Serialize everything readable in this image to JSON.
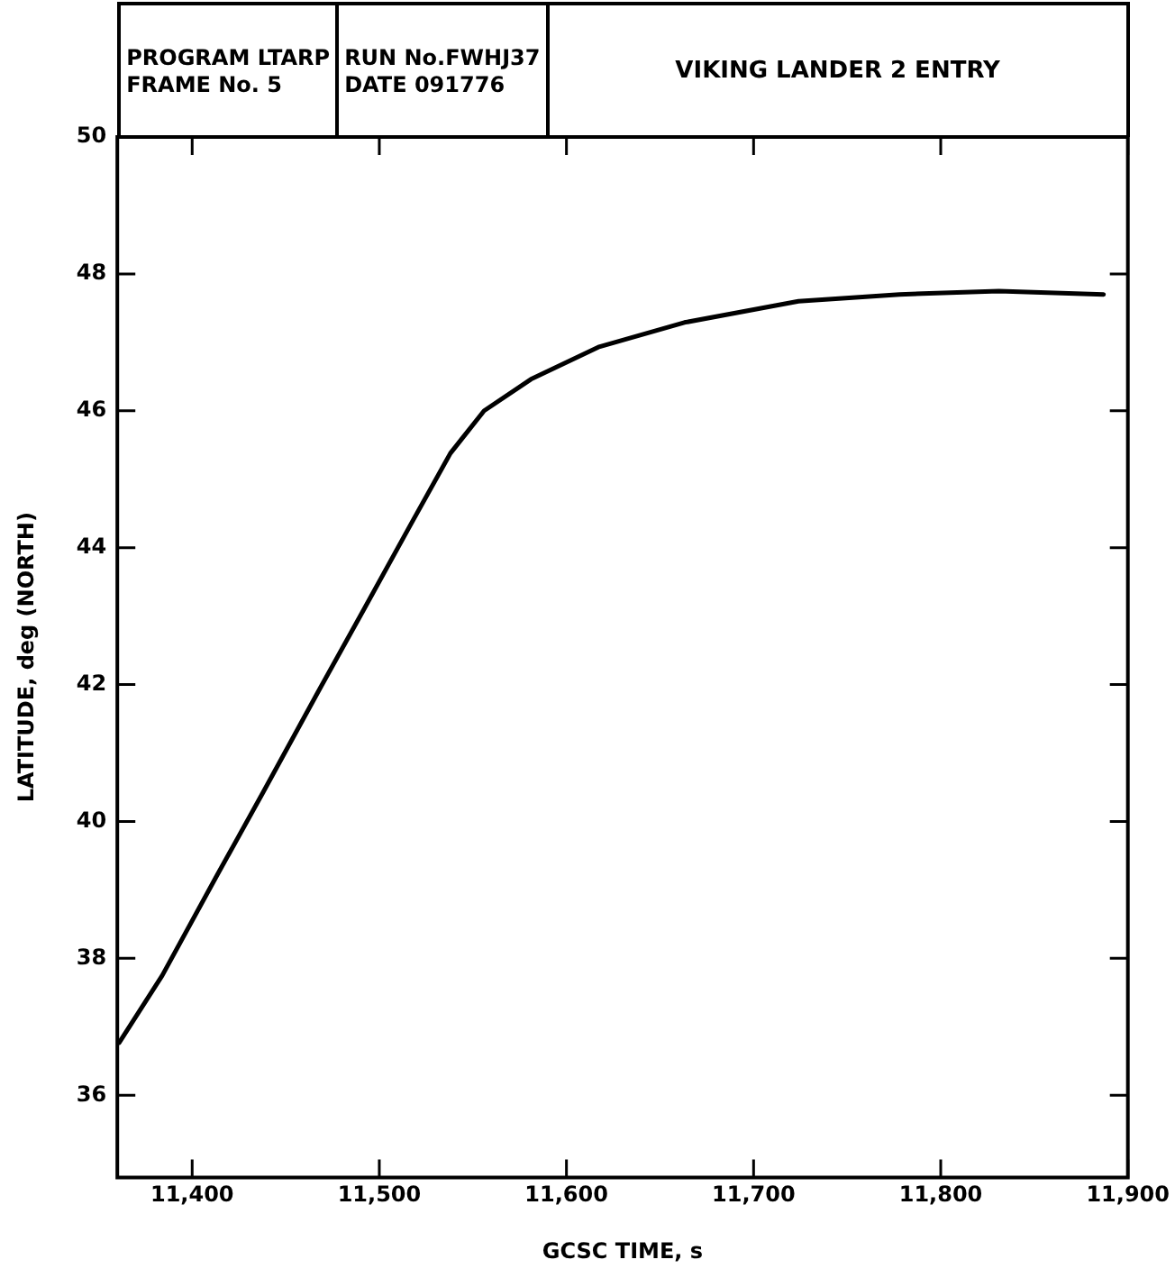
{
  "chart_data": {
    "type": "line",
    "title": "VIKING LANDER 2 ENTRY",
    "annotations": [
      "PROGRAM LTARP",
      "FRAME No. 5",
      "RUN No.FWHJ37",
      "DATE 091776"
    ],
    "xlabel": "GCSC TIME, s",
    "ylabel": "LATITUDE, deg (NORTH)",
    "xlim": [
      11360,
      11900
    ],
    "xticks": [
      {
        "value": 11400,
        "label": "11,400"
      },
      {
        "value": 11500,
        "label": "11,500"
      },
      {
        "value": 11600,
        "label": "11,600"
      },
      {
        "value": 11700,
        "label": "11,700"
      },
      {
        "value": 11800,
        "label": "11,800"
      },
      {
        "value": 11900,
        "label": "11,900"
      }
    ],
    "ylim": [
      34.8,
      50
    ],
    "yticks": [
      36,
      38,
      40,
      42,
      44,
      46,
      48,
      50
    ],
    "series": [
      {
        "color": "#000000",
        "x": [
          11361,
          11384,
          11413,
          11438,
          11467,
          11492,
          11517,
          11538,
          11556,
          11581,
          11617,
          11663,
          11724,
          11778,
          11831,
          11887
        ],
        "values": [
          36.77,
          37.75,
          39.2,
          40.43,
          41.88,
          43.11,
          44.35,
          45.38,
          46.0,
          46.46,
          46.93,
          47.29,
          47.6,
          47.7,
          47.75,
          47.7
        ]
      }
    ],
    "marker": "none",
    "line_style": "solid",
    "legend": false,
    "grid": false
  }
}
